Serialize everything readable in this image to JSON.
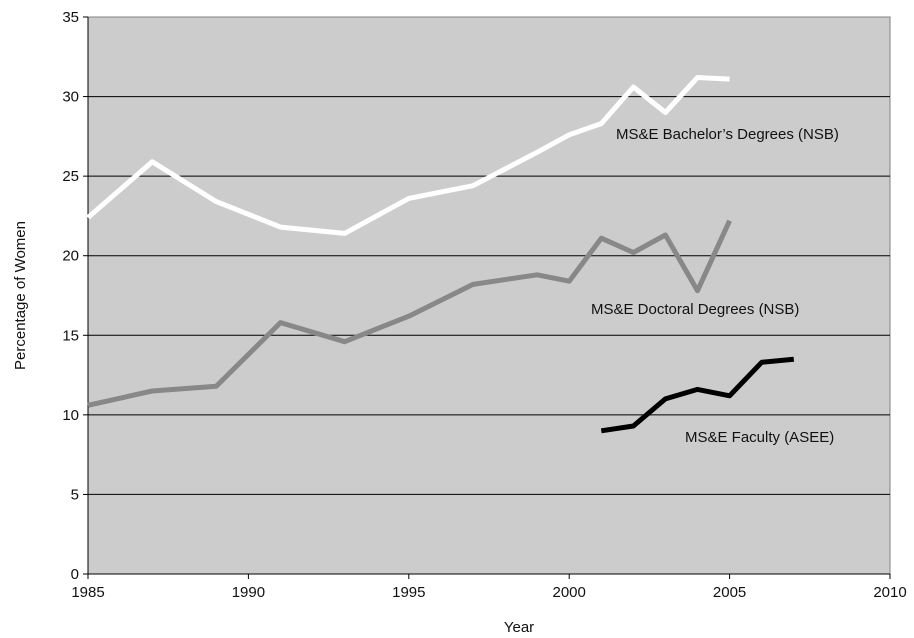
{
  "chart_data": {
    "type": "line",
    "xlabel": "Year",
    "ylabel": "Percentage of Women",
    "xlim": [
      1985,
      2010
    ],
    "ylim": [
      0,
      35
    ],
    "xticks": [
      1985,
      1990,
      1995,
      2000,
      2005,
      2010
    ],
    "yticks": [
      0,
      5,
      10,
      15,
      20,
      25,
      30,
      35
    ],
    "grid": "horizontal",
    "plot_background": "#cccccc",
    "series": [
      {
        "name": "MS&E Bachelor’s Degrees (NSB)",
        "color": "#ffffff",
        "x": [
          1985,
          1987,
          1989,
          1991,
          1993,
          1995,
          1997,
          1999,
          2000,
          2001,
          2002,
          2003,
          2004,
          2005
        ],
        "y": [
          22.4,
          25.9,
          23.4,
          21.8,
          21.4,
          23.6,
          24.4,
          26.5,
          27.6,
          28.3,
          30.6,
          29.0,
          31.2,
          31.1
        ]
      },
      {
        "name": "MS&E Doctoral Degrees (NSB)",
        "color": "#888888",
        "x": [
          1985,
          1987,
          1989,
          1991,
          1993,
          1995,
          1997,
          1999,
          2000,
          2001,
          2002,
          2003,
          2004,
          2005
        ],
        "y": [
          10.6,
          11.5,
          11.8,
          15.8,
          14.6,
          16.2,
          18.2,
          18.8,
          18.4,
          21.1,
          20.2,
          21.3,
          17.8,
          22.2
        ]
      },
      {
        "name": "MS&E Faculty (ASEE)",
        "color": "#000000",
        "x": [
          2001,
          2002,
          2003,
          2004,
          2005,
          2006,
          2007
        ],
        "y": [
          9.0,
          9.3,
          11.0,
          11.6,
          11.2,
          13.3,
          13.5
        ]
      }
    ]
  }
}
